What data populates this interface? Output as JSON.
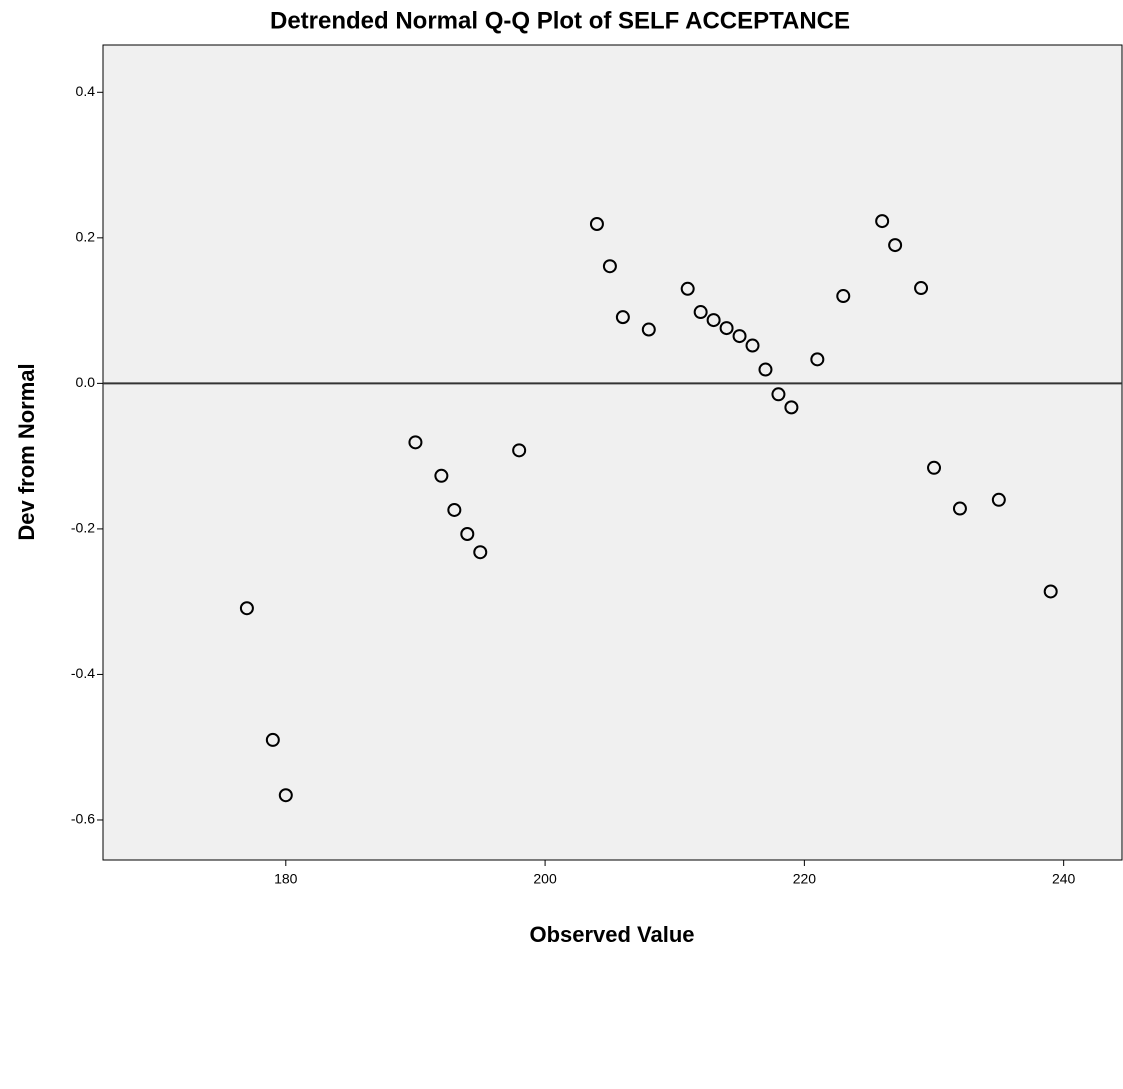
{
  "chart_data": {
    "type": "scatter",
    "title": "Detrended Normal Q-Q Plot of SELF ACCEPTANCE",
    "x_label": "Observed Value",
    "y_label": "Dev from Normal",
    "x": [
      177,
      179,
      180,
      190,
      192,
      193,
      194,
      195,
      198,
      204,
      205,
      206,
      208,
      211,
      212,
      213,
      214,
      215,
      216,
      217,
      218,
      219,
      221,
      223,
      226,
      227,
      229,
      230,
      232,
      235,
      239
    ],
    "values": [
      -0.309,
      -0.49,
      -0.566,
      -0.081,
      -0.127,
      -0.174,
      -0.207,
      -0.232,
      -0.092,
      0.219,
      0.161,
      0.091,
      0.074,
      0.13,
      0.098,
      0.087,
      0.076,
      0.065,
      0.052,
      0.019,
      -0.015,
      -0.033,
      0.033,
      0.12,
      0.223,
      0.19,
      0.131,
      -0.116,
      -0.172,
      -0.16,
      -0.286
    ],
    "color": "#000000",
    "reference_line": 0,
    "xlim": [
      165.9,
      244.5
    ],
    "xticks": [
      180,
      200,
      220,
      240
    ],
    "ylim": [
      -0.655,
      0.465
    ],
    "yticks": [
      0.4,
      0.2,
      {
        "value": 0,
        "label": "0.0"
      },
      -0.2,
      -0.4,
      -0.6
    ]
  }
}
